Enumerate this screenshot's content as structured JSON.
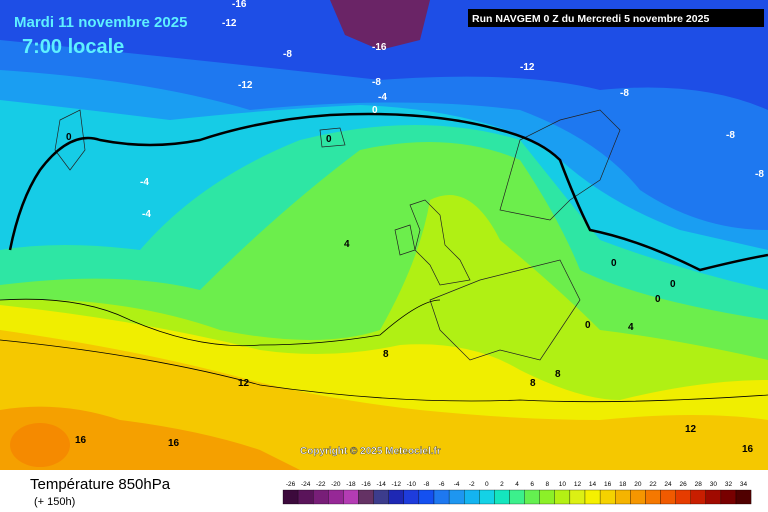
{
  "header": {
    "date": "Mardi 11 novembre 2025",
    "time": "7:00 locale",
    "run": "Run NAVGEM 0 Z du Mercredi 5 novembre 2025"
  },
  "footer": {
    "title": "Température 850hPa",
    "lead": "(+ 150h)",
    "copyright": "Copyright © 2025 Meteociel.fr"
  },
  "contour_labels": [
    -16,
    -12,
    -16,
    -8,
    -12,
    -8,
    -4,
    0,
    -12,
    -8,
    -8,
    -8,
    0,
    0,
    -4,
    -4,
    4,
    0,
    0,
    0,
    0,
    4,
    8,
    12,
    8,
    8,
    12,
    16,
    16,
    16
  ],
  "scale": {
    "labels": [
      -26,
      -24,
      -22,
      -20,
      -18,
      -16,
      -14,
      -12,
      -10,
      -8,
      -6,
      -4,
      -2,
      0,
      2,
      4,
      6,
      8,
      10,
      12,
      14,
      16,
      18,
      20,
      22,
      24,
      26,
      28,
      30,
      32,
      34
    ],
    "colors": [
      "#3c0a3c",
      "#5a145a",
      "#781e78",
      "#962896",
      "#b43cb4",
      "#643264",
      "#3c3c8c",
      "#1e28b4",
      "#1e3cdc",
      "#1450f0",
      "#1e78f0",
      "#1e96f0",
      "#14b4f0",
      "#14d2e6",
      "#14e6be",
      "#3cf08c",
      "#64f050",
      "#8cf028",
      "#b4f014",
      "#dcf014",
      "#f5f000",
      "#f5d200",
      "#f5b400",
      "#f59600",
      "#f57800",
      "#f05a00",
      "#e63c00",
      "#c81e00",
      "#a00a00",
      "#780000",
      "#500000"
    ]
  }
}
